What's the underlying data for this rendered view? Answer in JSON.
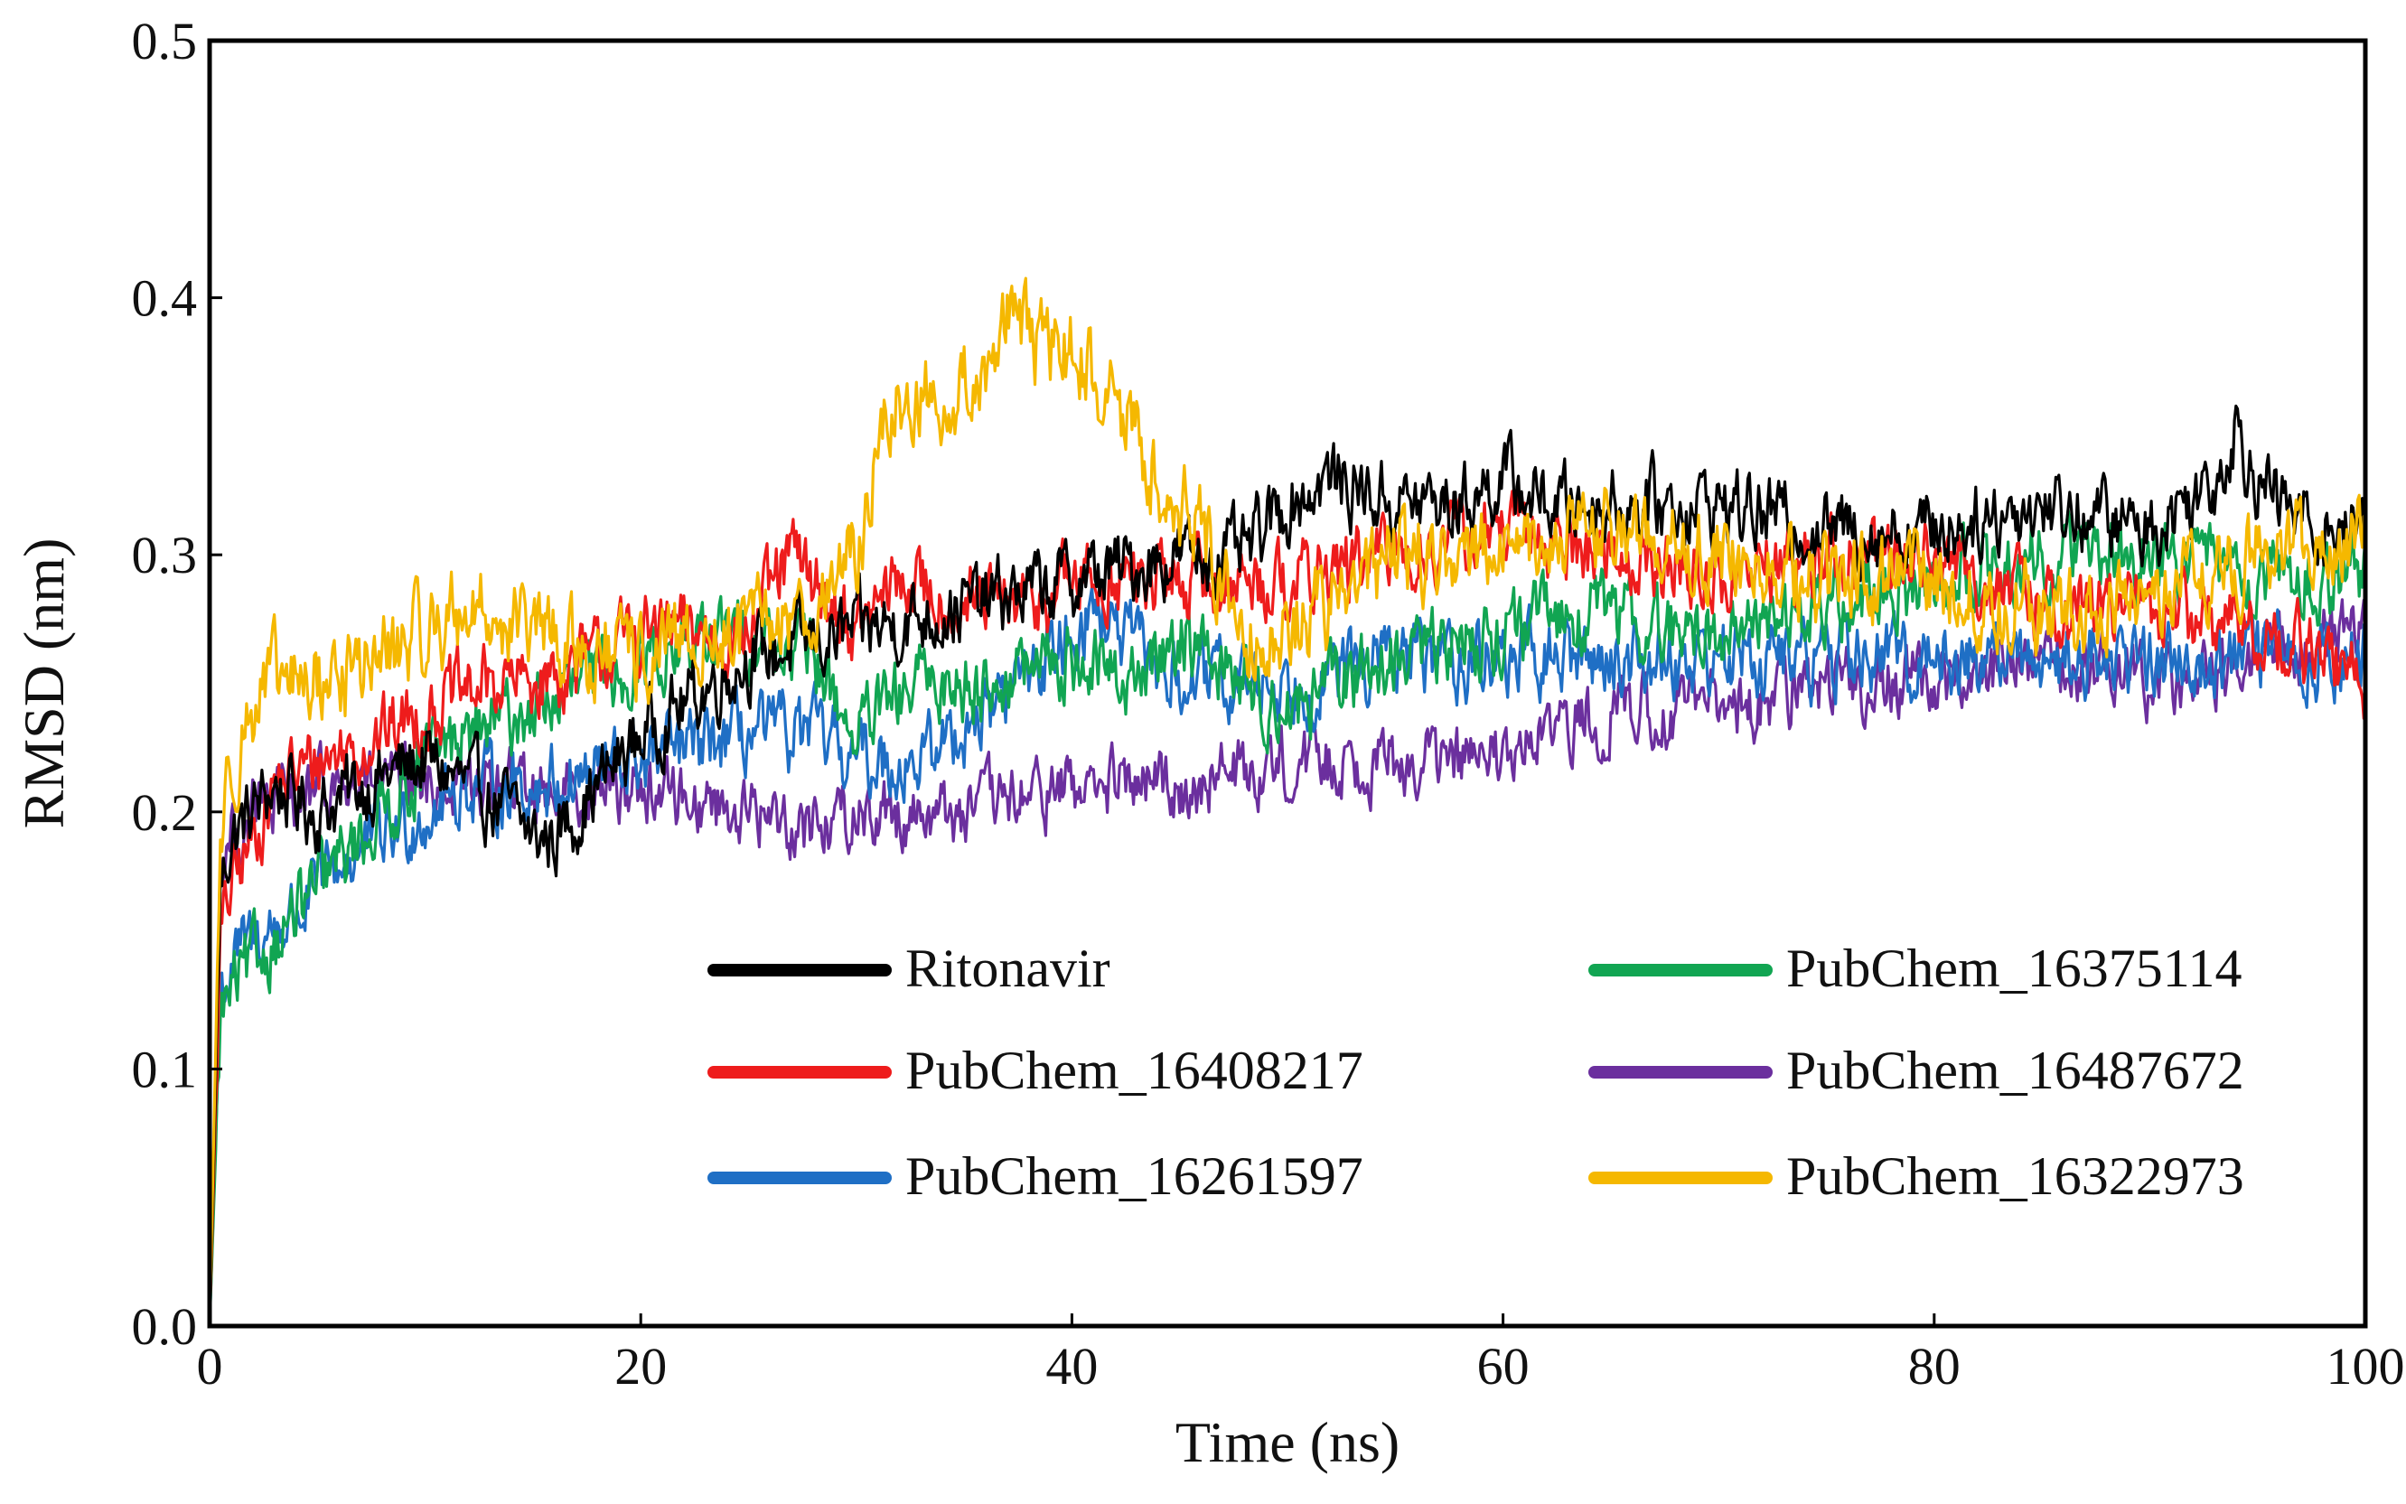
{
  "chart_data": {
    "type": "line",
    "xlabel": "Time (ns)",
    "ylabel": "RMSD (nm)",
    "xlim": [
      0,
      100
    ],
    "ylim": [
      0,
      0.5
    ],
    "x_ticks": [
      "0",
      "20",
      "40",
      "60",
      "80",
      "100"
    ],
    "y_ticks": [
      "0.0",
      "0.1",
      "0.2",
      "0.3",
      "0.4",
      "0.5"
    ],
    "grid": false,
    "legend_position": "bottom-center, two columns",
    "series": [
      {
        "name": "Ritonavir",
        "color": "#000000",
        "noise": 0.012,
        "x": [
          0,
          0.5,
          1,
          2,
          3,
          5,
          7,
          10,
          12,
          14,
          15,
          16,
          18,
          20,
          25,
          30,
          35,
          40,
          45,
          48,
          50,
          52,
          55,
          58,
          60,
          62,
          65,
          70,
          75,
          80,
          85,
          90,
          93,
          94,
          95,
          96,
          98,
          100
        ],
        "y": [
          0.0,
          0.17,
          0.19,
          0.2,
          0.21,
          0.2,
          0.21,
          0.22,
          0.21,
          0.2,
          0.19,
          0.19,
          0.21,
          0.23,
          0.26,
          0.27,
          0.28,
          0.29,
          0.3,
          0.3,
          0.32,
          0.33,
          0.32,
          0.32,
          0.33,
          0.32,
          0.32,
          0.32,
          0.31,
          0.31,
          0.32,
          0.31,
          0.33,
          0.35,
          0.33,
          0.32,
          0.31,
          0.31
        ]
      },
      {
        "name": "PubChem_16408217",
        "color": "#ee1c1c",
        "noise": 0.012,
        "x": [
          0,
          0.5,
          1,
          2,
          3,
          5,
          8,
          10,
          13,
          15,
          18,
          20,
          25,
          27,
          30,
          32,
          35,
          38,
          40,
          45,
          50,
          55,
          60,
          65,
          70,
          75,
          80,
          85,
          90,
          95,
          98,
          100
        ],
        "y": [
          0.0,
          0.15,
          0.17,
          0.19,
          0.21,
          0.22,
          0.23,
          0.24,
          0.25,
          0.25,
          0.26,
          0.27,
          0.27,
          0.3,
          0.27,
          0.29,
          0.28,
          0.28,
          0.29,
          0.29,
          0.29,
          0.3,
          0.31,
          0.3,
          0.29,
          0.3,
          0.3,
          0.28,
          0.28,
          0.27,
          0.26,
          0.25
        ]
      },
      {
        "name": "PubChem_16261597",
        "color": "#1f6fc5",
        "noise": 0.012,
        "x": [
          0,
          0.5,
          1,
          2,
          4,
          6,
          8,
          10,
          12,
          15,
          20,
          25,
          28,
          30,
          33,
          36,
          40,
          41,
          42,
          45,
          50,
          55,
          60,
          65,
          70,
          75,
          80,
          85,
          90,
          95,
          100
        ],
        "y": [
          0.0,
          0.13,
          0.14,
          0.15,
          0.16,
          0.18,
          0.19,
          0.2,
          0.21,
          0.21,
          0.22,
          0.23,
          0.23,
          0.22,
          0.22,
          0.24,
          0.27,
          0.28,
          0.27,
          0.25,
          0.25,
          0.26,
          0.26,
          0.26,
          0.26,
          0.26,
          0.26,
          0.26,
          0.26,
          0.26,
          0.26
        ]
      },
      {
        "name": "PubChem_16375114",
        "color": "#11a552",
        "noise": 0.012,
        "x": [
          0,
          0.5,
          1,
          2,
          3,
          5,
          7,
          10,
          12,
          15,
          20,
          25,
          28,
          30,
          33,
          36,
          40,
          43,
          45,
          48,
          50,
          55,
          60,
          65,
          67,
          70,
          75,
          80,
          85,
          90,
          95,
          100
        ],
        "y": [
          0.0,
          0.12,
          0.13,
          0.14,
          0.15,
          0.17,
          0.19,
          0.22,
          0.23,
          0.24,
          0.26,
          0.27,
          0.26,
          0.23,
          0.25,
          0.25,
          0.26,
          0.25,
          0.27,
          0.25,
          0.24,
          0.26,
          0.27,
          0.28,
          0.27,
          0.27,
          0.28,
          0.29,
          0.3,
          0.3,
          0.29,
          0.29
        ]
      },
      {
        "name": "PubChem_16487672",
        "color": "#6b2f9e",
        "noise": 0.011,
        "x": [
          0,
          0.5,
          1,
          2,
          4,
          6,
          8,
          10,
          13,
          15,
          20,
          25,
          28,
          30,
          35,
          40,
          45,
          50,
          55,
          60,
          65,
          70,
          75,
          80,
          85,
          90,
          95,
          100
        ],
        "y": [
          0.0,
          0.18,
          0.19,
          0.2,
          0.205,
          0.21,
          0.21,
          0.21,
          0.21,
          0.21,
          0.21,
          0.2,
          0.195,
          0.2,
          0.2,
          0.21,
          0.21,
          0.22,
          0.22,
          0.22,
          0.24,
          0.24,
          0.25,
          0.25,
          0.26,
          0.25,
          0.26,
          0.27
        ]
      },
      {
        "name": "PubChem_16322973",
        "color": "#f5b800",
        "noise": 0.014,
        "x": [
          0,
          0.5,
          1,
          2,
          3,
          5,
          8,
          10,
          12,
          15,
          18,
          20,
          25,
          28,
          30,
          31,
          32,
          34,
          36,
          37,
          38,
          40,
          42,
          44,
          46,
          47,
          48,
          50,
          55,
          60,
          65,
          70,
          75,
          80,
          85,
          90,
          95,
          100
        ],
        "y": [
          0.0,
          0.19,
          0.22,
          0.24,
          0.25,
          0.25,
          0.26,
          0.27,
          0.28,
          0.27,
          0.26,
          0.26,
          0.27,
          0.28,
          0.3,
          0.34,
          0.36,
          0.36,
          0.37,
          0.4,
          0.38,
          0.38,
          0.36,
          0.33,
          0.31,
          0.29,
          0.27,
          0.27,
          0.3,
          0.3,
          0.31,
          0.3,
          0.29,
          0.29,
          0.28,
          0.28,
          0.3,
          0.31
        ]
      }
    ]
  }
}
